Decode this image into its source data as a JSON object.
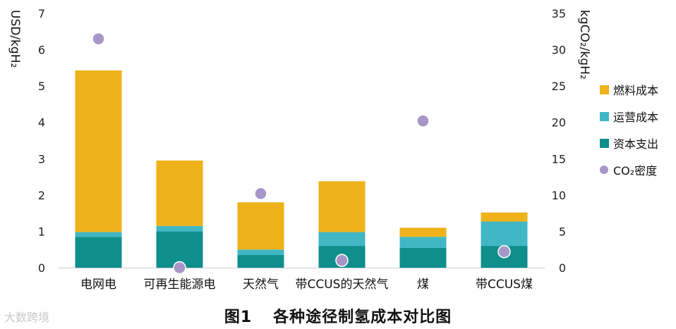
{
  "chart_data": {
    "type": "bar",
    "stacked": true,
    "categories": [
      "电网电",
      "可再生能源电",
      "天然气",
      "带CCUS的天然气",
      "煤",
      "带CCUS煤"
    ],
    "series": [
      {
        "name": "资本支出",
        "color": "#0e8f8c",
        "values": [
          0.85,
          1.0,
          0.35,
          0.6,
          0.55,
          0.6
        ]
      },
      {
        "name": "运营成本",
        "color": "#41b7c6",
        "values": [
          0.13,
          0.15,
          0.15,
          0.38,
          0.3,
          0.67
        ]
      },
      {
        "name": "燃料成本",
        "color": "#efb21a",
        "values": [
          4.45,
          1.8,
          1.3,
          1.4,
          0.25,
          0.25
        ]
      }
    ],
    "scatter": {
      "name": "CO₂密度",
      "color": "#a796c8",
      "axis": "right",
      "values": [
        31.5,
        0,
        10.2,
        1,
        20.2,
        2.2
      ]
    },
    "ylabel_left": "USD/kgH₂",
    "ylabel_right": "kgCO₂/kgH₂",
    "ylim_left": [
      0,
      7
    ],
    "ylim_right": [
      0,
      35
    ],
    "yticks_left": [
      "0",
      "1",
      "2",
      "3",
      "4",
      "5",
      "6",
      "7"
    ],
    "yticks_right": [
      "0",
      "5",
      "10",
      "15",
      "20",
      "25",
      "30",
      "35"
    ],
    "grid": false,
    "legend_position": "right"
  },
  "legend": {
    "fuel": "燃料成本",
    "opex": "运营成本",
    "capex": "资本支出",
    "co2": "CO₂密度"
  },
  "caption": {
    "number": "图1",
    "title": "各种途径制氢成本对比图"
  },
  "watermark": "大数跨境"
}
